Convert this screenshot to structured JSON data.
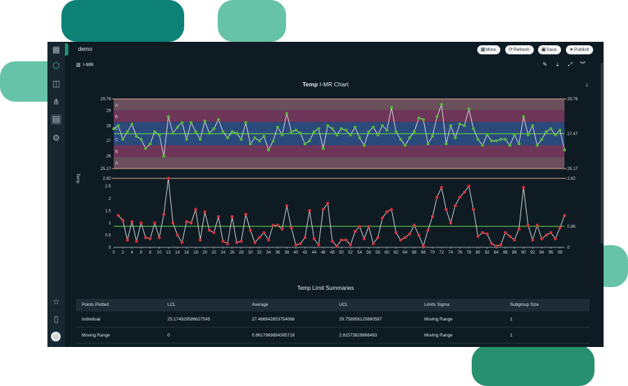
{
  "app": {
    "title": "demo",
    "buttons": [
      {
        "label": "More",
        "icon": "grid-icon"
      },
      {
        "label": "Refresh",
        "icon": "refresh-icon"
      },
      {
        "label": "Save",
        "icon": "save-icon"
      },
      {
        "label": "Publish",
        "icon": "send-icon"
      }
    ],
    "chart_tab": "I-MR"
  },
  "chart_title_prefix": "Temp",
  "chart_title_suffix": "I-MR Chart",
  "chart_data": [
    {
      "type": "line",
      "name": "Individual",
      "ylabel": "Temp",
      "x": [
        0,
        1,
        2,
        3,
        4,
        5,
        6,
        7,
        8,
        9,
        10,
        11,
        12,
        13,
        14,
        15,
        16,
        17,
        18,
        19,
        20,
        21,
        22,
        23,
        24,
        25,
        26,
        27,
        28,
        29,
        30,
        31,
        32,
        33,
        34,
        35,
        36,
        37,
        38,
        39,
        40,
        41,
        42,
        43,
        44,
        45,
        46,
        47,
        48,
        49,
        50,
        51,
        52,
        53,
        54,
        55,
        56,
        57,
        58,
        59,
        60,
        61,
        62,
        63,
        64,
        65,
        66,
        67,
        68,
        69,
        70,
        71,
        72,
        73,
        74,
        75,
        76,
        77,
        78,
        79,
        80,
        81,
        82,
        83,
        84,
        85,
        86,
        87,
        88,
        89,
        90,
        91,
        92,
        93,
        94,
        95,
        96,
        97,
        98,
        99
      ],
      "values": [
        27.8,
        28.0,
        27.1,
        27.6,
        28.1,
        27.3,
        27.1,
        26.5,
        26.8,
        27.6,
        27.4,
        26.0,
        28.6,
        27.5,
        27.9,
        28.2,
        27.1,
        28.2,
        27.6,
        27.1,
        28.3,
        27.5,
        27.8,
        28.4,
        27.6,
        27.2,
        27.6,
        27.5,
        27.1,
        28.2,
        26.8,
        27.2,
        27.0,
        27.3,
        26.4,
        27.0,
        27.9,
        27.4,
        28.8,
        27.6,
        27.7,
        27.5,
        26.8,
        27.0,
        27.6,
        27.8,
        26.5,
        28.0,
        27.8,
        27.4,
        27.8,
        27.7,
        27.4,
        27.9,
        27.2,
        26.7,
        27.6,
        27.9,
        27.4,
        28.0,
        27.7,
        29.2,
        27.6,
        27.1,
        26.7,
        27.2,
        27.6,
        28.5,
        28.4,
        26.8,
        27.3,
        28.6,
        29.4,
        26.8,
        28.0,
        27.2,
        28.1,
        28.0,
        29.1,
        27.8,
        27.1,
        26.7,
        27.4,
        27.0,
        27.0,
        27.1,
        27.1,
        26.7,
        27.4,
        26.8,
        28.6,
        27.4,
        28.0,
        26.7,
        27.1,
        27.6,
        27.8,
        27.4,
        27.7,
        26.4
      ],
      "ylim": [
        25.17,
        29.76
      ],
      "yticks": [
        26,
        27,
        28,
        29
      ],
      "limits": {
        "lcl": "25.17",
        "cl": "27.47",
        "ucl": "29.76"
      },
      "zones": [
        "A",
        "B",
        "C",
        "C",
        "B",
        "A"
      ]
    },
    {
      "type": "line",
      "name": "Moving Range",
      "values": [
        null,
        1.3,
        1.1,
        0.3,
        1.05,
        0.25,
        1.0,
        0.4,
        0.35,
        1.0,
        0.4,
        1.35,
        2.82,
        1.0,
        0.5,
        0.2,
        1.05,
        1.0,
        1.55,
        0.3,
        1.45,
        0.7,
        0.6,
        1.25,
        0.25,
        0.15,
        1.25,
        0.2,
        0.25,
        1.35,
        0.7,
        0.2,
        0.4,
        0.6,
        0.3,
        0.9,
        0.9,
        0.75,
        1.7,
        0.8,
        0.1,
        0.15,
        0.4,
        1.5,
        0.35,
        0.1,
        1.55,
        1.8,
        0.25,
        0.05,
        0.3,
        0.3,
        0.1,
        0.65,
        0.85,
        0.35,
        0.85,
        0.15,
        0.4,
        1.2,
        1.45,
        1.55,
        0.6,
        0.3,
        0.4,
        0.55,
        0.9,
        0.5,
        0.05,
        0.7,
        1.25,
        2.05,
        2.45,
        1.55,
        1.0,
        1.7,
        2.05,
        2.25,
        2.5,
        1.55,
        0.45,
        0.6,
        0.55,
        0.15,
        0.05,
        0.1,
        0.6,
        0.45,
        0.3,
        0.75,
        2.45,
        0.9,
        0.3,
        0.9,
        0.35,
        0.5,
        0.6,
        0.35,
        0.8,
        1.3
      ],
      "ylim": [
        0,
        2.82
      ],
      "yticks": [
        "0",
        "0.5",
        "1",
        "1.5",
        "2",
        "2.5",
        "2.82"
      ],
      "limits": {
        "lcl": "0",
        "cl": "0.86",
        "ucl": "2.82"
      },
      "xticks": [
        "0",
        "2",
        "4",
        "6",
        "8",
        "10",
        "12",
        "14",
        "16",
        "18",
        "20",
        "22",
        "24",
        "26",
        "28",
        "30",
        "32",
        "34",
        "36",
        "38",
        "40",
        "42",
        "44",
        "46",
        "48",
        "50",
        "52",
        "54",
        "56",
        "58",
        "60",
        "62",
        "64",
        "66",
        "68",
        "70",
        "72",
        "74",
        "76",
        "78",
        "80",
        "82",
        "84",
        "86",
        "88",
        "90",
        "92",
        "94",
        "96",
        "98"
      ]
    }
  ],
  "summary": {
    "title": "Temp Limit Summaries",
    "headers": [
      "Points Plotted",
      "LCL",
      "Average",
      "UCL",
      "Limits Sigma",
      "Subgroup Size"
    ],
    "rows": [
      [
        "Individual",
        "25.174929586627545",
        "27.466942853754066",
        "29.758956120880587",
        "Moving Range",
        "1"
      ],
      [
        "Moving Range",
        "0",
        "0.8617969884395716",
        "2.81573829866493",
        "Moving Range",
        "1"
      ]
    ]
  },
  "colors": {
    "app_bg": "#0f1b23",
    "zone_a": "#6b4f5c",
    "zone_b": "#6d3558",
    "zone_c": "#2b4a7c",
    "center_line": "#5ecb4a",
    "limit_line": "#d9a68f",
    "point_green": "#53b536",
    "point_red": "#d4323a",
    "series_line": "#e6e6e6"
  }
}
